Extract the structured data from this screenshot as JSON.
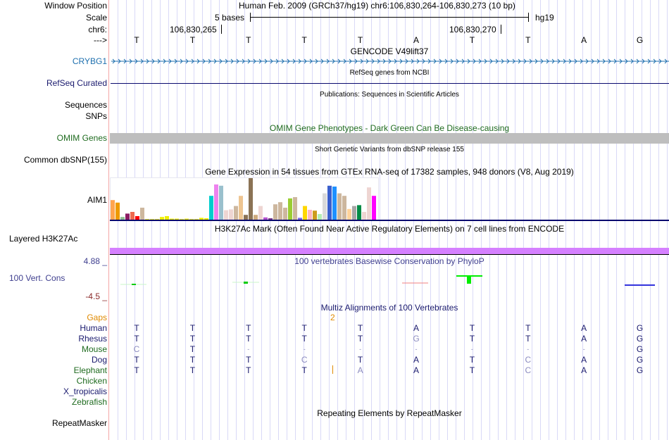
{
  "header": {
    "window_position_label": "Window Position",
    "scale_label": "Scale",
    "chrom_label": "chr6:",
    "strand_label": "--->",
    "assembly_position": "Human Feb. 2009 (GRCh37/hg19)   chr6:106,830,264-106,830,273 (10 bp)",
    "scale_text": "5 bases",
    "scale_db": "hg19",
    "coord_left": "106,830,265",
    "coord_right": "106,830,270"
  },
  "bases": [
    "T",
    "T",
    "T",
    "T",
    "T",
    "A",
    "T",
    "T",
    "A",
    "G"
  ],
  "tracks": {
    "gencode": {
      "title": "GENCODE V49lift37",
      "label": "CRYBG1",
      "color": "#1d6fae"
    },
    "refseq": {
      "title": "RefSeq genes from NCBI",
      "label": "RefSeq Curated",
      "color": "#0a0a6e"
    },
    "publications": {
      "title": "Publications: Sequences in Scientific Articles",
      "label_line1": "Sequences",
      "label_line2": "SNPs"
    },
    "omim": {
      "title": "OMIM Gene Phenotypes - Dark Green Can Be Disease-causing",
      "label": "OMIM Genes",
      "bar_color": "#bebebe"
    },
    "dbsnp": {
      "title": "Short Genetic Variants from dbSNP release 155",
      "label": "Common dbSNP(155)"
    },
    "gtex": {
      "title": "Gene Expression in 54 tissues from GTEx RNA-seq of 17382 samples, 948 donors (V8, Aug 2019)",
      "label": "AIM1"
    },
    "h3k27ac": {
      "title": "H3K27Ac Mark (Often Found Near Active Regulatory Elements) on 7 cell lines from ENCODE",
      "label": "Layered H3K27Ac",
      "bar_color": "#d580ff"
    },
    "phylop": {
      "title": "100 vertebrates Basewise Conservation by PhyloP",
      "label": "100 Vert. Cons",
      "max": "4.88 _",
      "min": "-4.5 _"
    },
    "multiz": {
      "title": "Multiz Alignments of 100 Vertebrates",
      "gaps_label": "Gaps",
      "gap_count": "2",
      "species": [
        {
          "name": "Human",
          "color": "navy",
          "seq": [
            "T",
            "T",
            "T",
            "T",
            "T",
            "A",
            "T",
            "T",
            "A",
            "G"
          ],
          "faded": [
            0,
            0,
            0,
            0,
            0,
            0,
            0,
            0,
            0,
            0
          ]
        },
        {
          "name": "Rhesus",
          "color": "navy",
          "seq": [
            "T",
            "T",
            "T",
            "T",
            "T",
            "G",
            "T",
            "T",
            "A",
            "G"
          ],
          "faded": [
            0,
            0,
            0,
            0,
            0,
            1,
            0,
            0,
            0,
            0
          ]
        },
        {
          "name": "Mouse",
          "color": "dgreen",
          "seq": [
            "C",
            "T",
            "-",
            "-",
            "-",
            "-",
            "-",
            "-",
            "-",
            "G"
          ],
          "faded": [
            1,
            0,
            1,
            1,
            1,
            1,
            1,
            1,
            1,
            0
          ]
        },
        {
          "name": "Dog",
          "color": "navy",
          "seq": [
            "T",
            "T",
            "T",
            "C",
            "T",
            "A",
            "T",
            "C",
            "A",
            "G"
          ],
          "faded": [
            0,
            0,
            0,
            1,
            0,
            0,
            0,
            1,
            0,
            0
          ]
        },
        {
          "name": "Elephant",
          "color": "dgreen",
          "seq": [
            "T",
            "T",
            "T",
            "T",
            "A",
            "A",
            "T",
            "C",
            "A",
            "G"
          ],
          "faded": [
            0,
            0,
            0,
            0,
            1,
            0,
            0,
            1,
            0,
            0
          ]
        },
        {
          "name": "Chicken",
          "color": "dgreen",
          "seq": [],
          "faded": []
        },
        {
          "name": "X_tropicalis",
          "color": "navy",
          "seq": [],
          "faded": []
        },
        {
          "name": "Zebrafish",
          "color": "dgreen",
          "seq": [],
          "faded": []
        }
      ]
    },
    "repeatmasker": {
      "title": "Repeating Elements by RepeatMasker",
      "label": "RepeatMasker"
    }
  },
  "gtex_bars": [
    {
      "v": 48,
      "c": "#ffa54f"
    },
    {
      "v": 42,
      "c": "#ee9a00"
    },
    {
      "v": 8,
      "c": "#8fbc8f"
    },
    {
      "v": 16,
      "c": "#8b1c62"
    },
    {
      "v": 20,
      "c": "#ee6a50"
    },
    {
      "v": 10,
      "c": "#ff0000"
    },
    {
      "v": 30,
      "c": "#cdb79e"
    },
    {
      "v": 3,
      "c": "#eeee00"
    },
    {
      "v": 3,
      "c": "#eeee00"
    },
    {
      "v": 3,
      "c": "#eeee00"
    },
    {
      "v": 8,
      "c": "#eeee00"
    },
    {
      "v": 10,
      "c": "#eeee00"
    },
    {
      "v": 4,
      "c": "#eeee00"
    },
    {
      "v": 4,
      "c": "#eeee00"
    },
    {
      "v": 3,
      "c": "#eeee00"
    },
    {
      "v": 4,
      "c": "#eeee00"
    },
    {
      "v": 3,
      "c": "#eeee00"
    },
    {
      "v": 3,
      "c": "#eeee00"
    },
    {
      "v": 6,
      "c": "#eeee00"
    },
    {
      "v": 5,
      "c": "#eeee00"
    },
    {
      "v": 58,
      "c": "#00cdcd"
    },
    {
      "v": 85,
      "c": "#ee82ee"
    },
    {
      "v": 82,
      "c": "#9ac0cd"
    },
    {
      "v": 24,
      "c": "#eed5d2"
    },
    {
      "v": 26,
      "c": "#eed5d2"
    },
    {
      "v": 34,
      "c": "#cdb79e"
    },
    {
      "v": 58,
      "c": "#eec591"
    },
    {
      "v": 13,
      "c": "#8b7355"
    },
    {
      "v": 100,
      "c": "#8b7355"
    },
    {
      "v": 13,
      "c": "#cdaa7d"
    },
    {
      "v": 34,
      "c": "#eed5d2"
    },
    {
      "v": 7,
      "c": "#b452cd"
    },
    {
      "v": 5,
      "c": "#7a378b"
    },
    {
      "v": 38,
      "c": "#cdb79e"
    },
    {
      "v": 43,
      "c": "#cdb79e"
    },
    {
      "v": 30,
      "c": "#cdb79e"
    },
    {
      "v": 52,
      "c": "#9acd32"
    },
    {
      "v": 55,
      "c": "#cdb79e"
    },
    {
      "v": 6,
      "c": "#7a67ee"
    },
    {
      "v": 34,
      "c": "#ffd700"
    },
    {
      "v": 25,
      "c": "#ffb6c1"
    },
    {
      "v": 23,
      "c": "#cd9b1d"
    },
    {
      "v": 15,
      "c": "#b4eeb4"
    },
    {
      "v": 64,
      "c": "#d9d9d9"
    },
    {
      "v": 82,
      "c": "#3a5fcd"
    },
    {
      "v": 80,
      "c": "#1e90ff"
    },
    {
      "v": 64,
      "c": "#cdb79e"
    },
    {
      "v": 58,
      "c": "#cdb79e"
    },
    {
      "v": 27,
      "c": "#ffd39b"
    },
    {
      "v": 34,
      "c": "#a6a6a6"
    },
    {
      "v": 36,
      "c": "#008b45"
    },
    {
      "v": 20,
      "c": "#eed5d2"
    },
    {
      "v": 78,
      "c": "#eed5d2"
    },
    {
      "v": 58,
      "c": "#ff00ff"
    }
  ]
}
